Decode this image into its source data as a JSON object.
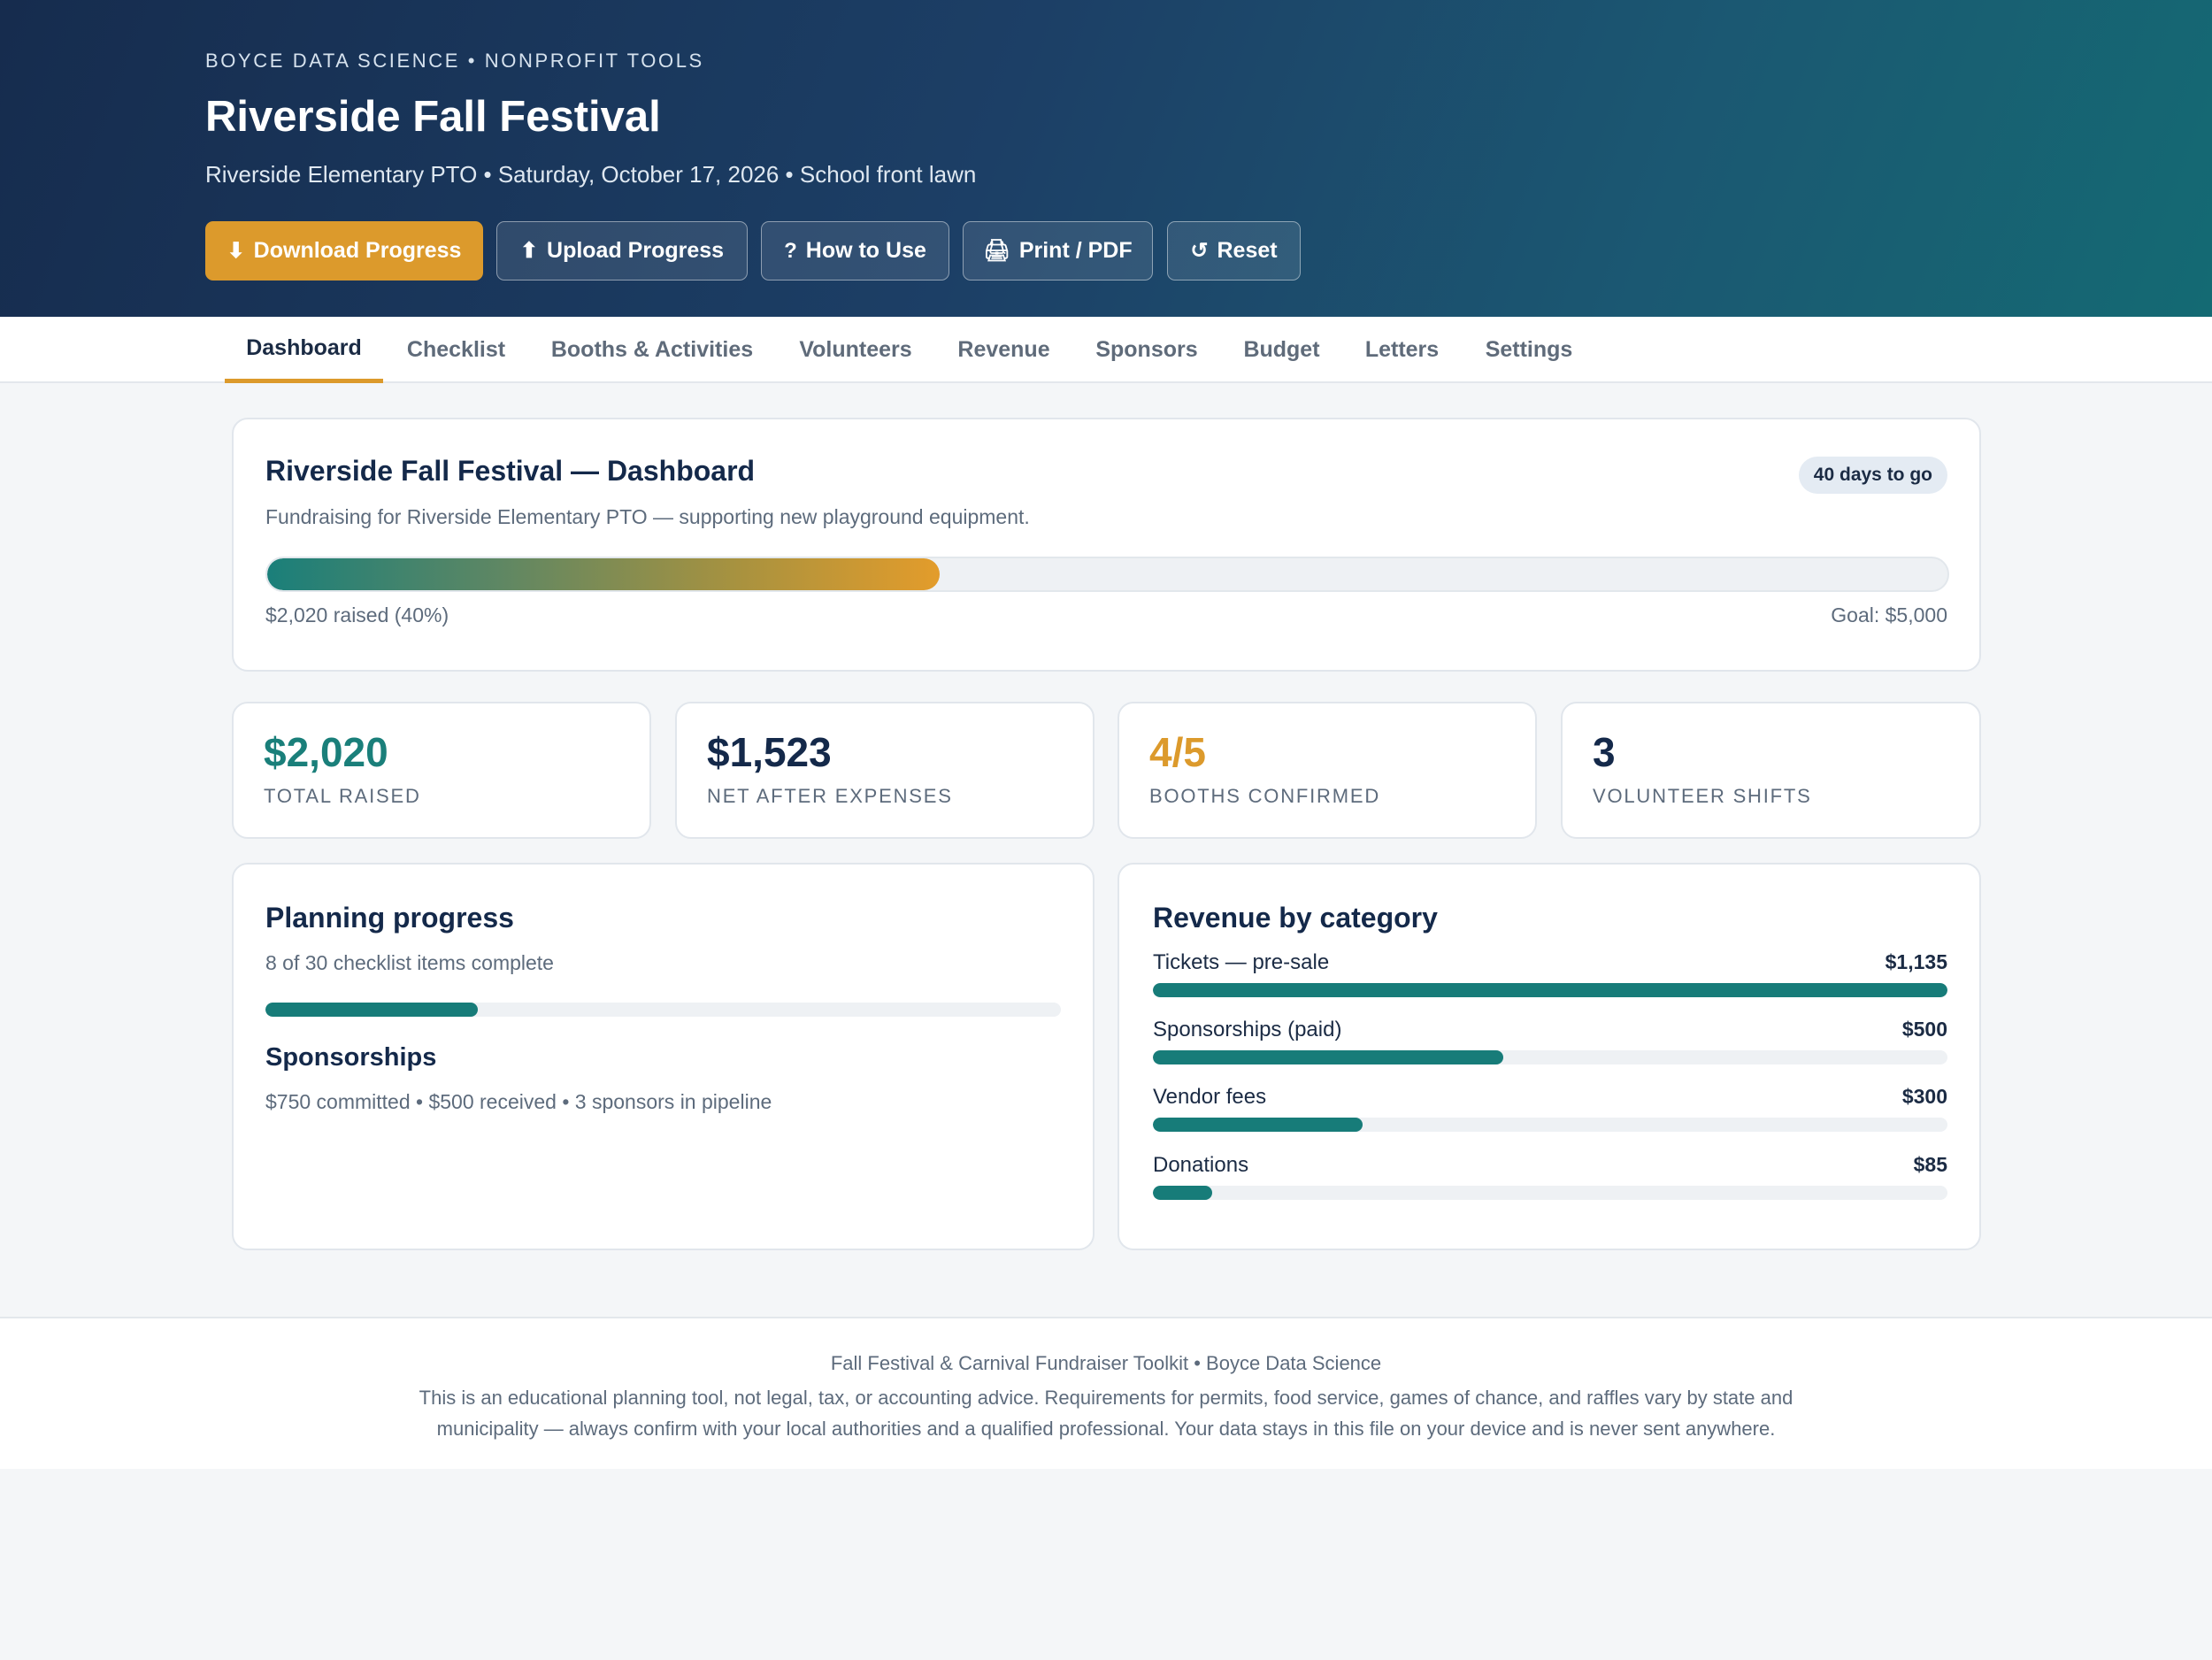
{
  "header": {
    "org": "BOYCE DATA SCIENCE • NONPROFIT TOOLS",
    "title": "Riverside Fall Festival",
    "subtitle": "Riverside Elementary PTO • Saturday, October 17, 2026 • School front lawn",
    "buttons": {
      "download": {
        "icon": "⬇",
        "label": "Download Progress",
        "icon_name": "download-icon"
      },
      "upload": {
        "icon": "⬆",
        "label": "Upload Progress",
        "icon_name": "upload-icon"
      },
      "howto": {
        "icon": "?",
        "label": "How to Use",
        "icon_name": "help-icon"
      },
      "print": {
        "icon": "🖨",
        "label": "Print / PDF",
        "icon_name": "printer-icon"
      },
      "reset": {
        "icon": "↺",
        "label": "Reset",
        "icon_name": "reset-icon"
      }
    }
  },
  "tabs": {
    "dashboard": "Dashboard",
    "checklist": "Checklist",
    "booths": "Booths & Activities",
    "volunteers": "Volunteers",
    "revenue": "Revenue",
    "sponsors": "Sponsors",
    "budget": "Budget",
    "letters": "Letters",
    "settings": "Settings",
    "active": "Dashboard"
  },
  "overview": {
    "title": "Riverside Fall Festival — Dashboard",
    "countdown": "40 days to go",
    "description": "Fundraising for Riverside Elementary PTO — supporting new playground equipment.",
    "progress_percent": 40,
    "raised_text": "$2,020 raised (40%)",
    "goal_text": "Goal: $5,000"
  },
  "stats": {
    "total_raised": {
      "value": "$2,020",
      "label": "TOTAL RAISED",
      "color": "#1a7f7a"
    },
    "net": {
      "value": "$1,523",
      "label": "NET AFTER EXPENSES",
      "color": "#14294a"
    },
    "booths": {
      "value": "4/5",
      "label": "BOOTHS CONFIRMED",
      "color": "#dc9a2c"
    },
    "shifts": {
      "value": "3",
      "label": "VOLUNTEER SHIFTS",
      "color": "#14294a"
    }
  },
  "planning": {
    "title": "Planning progress",
    "summary": "8 of 30 checklist items complete",
    "completed": 8,
    "total": 30,
    "sponsorships_title": "Sponsorships",
    "sponsorships_text": "$750 committed • $500 received • 3 sponsors in pipeline"
  },
  "revenue": {
    "title": "Revenue by category",
    "max": 1135,
    "items": [
      {
        "name": "Tickets — pre-sale",
        "value_label": "$1,135",
        "amount": 1135
      },
      {
        "name": "Sponsorships (paid)",
        "value_label": "$500",
        "amount": 500
      },
      {
        "name": "Vendor fees",
        "value_label": "$300",
        "amount": 300
      },
      {
        "name": "Donations",
        "value_label": "$85",
        "amount": 85
      }
    ]
  },
  "colors": {
    "accent": "#dc9a2c",
    "teal": "#1a7f7a",
    "navy": "#14294a"
  },
  "footer": {
    "line1": "Fall Festival & Carnival Fundraiser Toolkit • Boyce Data Science",
    "line2": "This is an educational planning tool, not legal, tax, or accounting advice. Requirements for permits, food service, games of chance, and raffles vary by state and municipality — always confirm with your local authorities and a qualified professional. Your data stays in this file on your device and is never sent anywhere."
  }
}
